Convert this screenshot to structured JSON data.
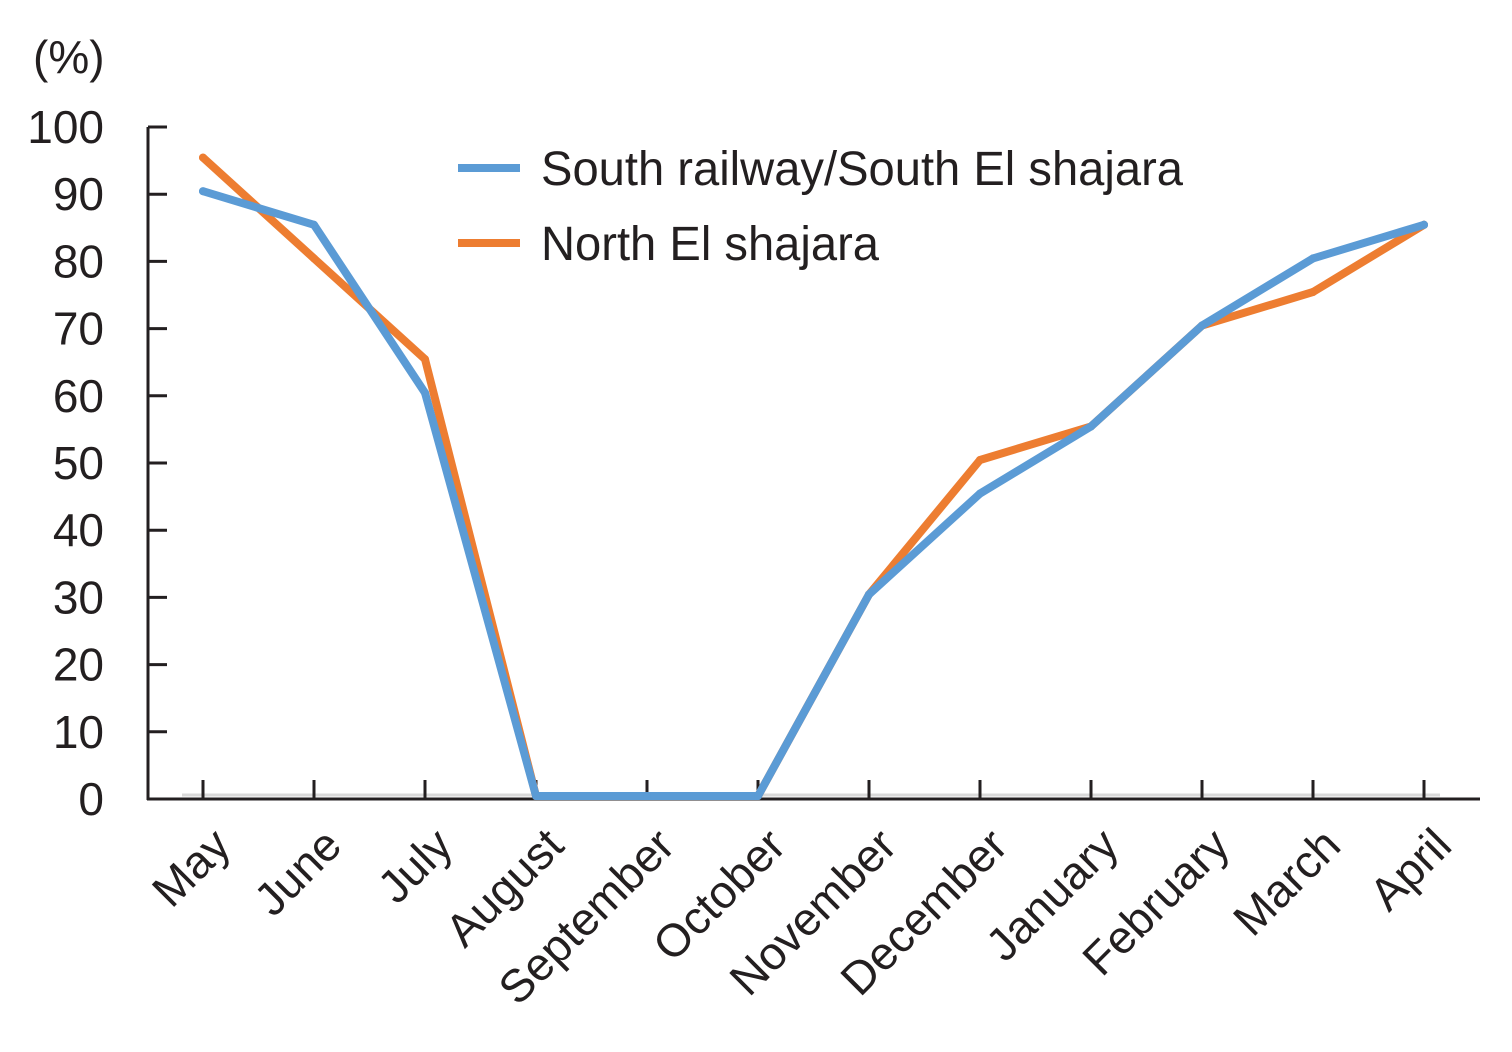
{
  "chart_data": {
    "type": "line",
    "title": "",
    "ylabel": "(%)",
    "xlabel": "",
    "ylim": [
      0,
      100
    ],
    "yticks": [
      0,
      10,
      20,
      30,
      40,
      50,
      60,
      70,
      80,
      90,
      100
    ],
    "grid": false,
    "legend_position": "top-center",
    "categories": [
      "May",
      "June",
      "July",
      "August",
      "September",
      "October",
      "November",
      "December",
      "January",
      "February",
      "March",
      "April"
    ],
    "series": [
      {
        "name": "South railway/South El shajara",
        "color": "#5b9bd5",
        "values": [
          90,
          85,
          60,
          0,
          0,
          0,
          30,
          45,
          55,
          70,
          80,
          85
        ]
      },
      {
        "name": "North El shajara",
        "color": "#ed7d31",
        "values": [
          95,
          80,
          65,
          0,
          0,
          0,
          30,
          50,
          55,
          70,
          75,
          85
        ]
      }
    ]
  }
}
